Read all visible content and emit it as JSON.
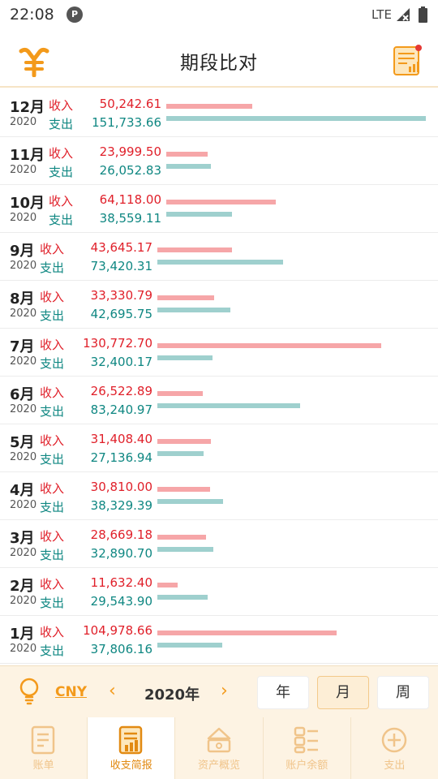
{
  "status_bar": {
    "time": "22:08",
    "app_badge": "P",
    "network": "LTE"
  },
  "header": {
    "title": "期段比对"
  },
  "labels": {
    "income": "收入",
    "expense": "支出"
  },
  "max_value": 151733.66,
  "rows": [
    {
      "month": "12月",
      "year": "2020",
      "income": "50,242.61",
      "expense": "151,733.66",
      "income_value": 50242.61,
      "expense_value": 151733.66
    },
    {
      "month": "11月",
      "year": "2020",
      "income": "23,999.50",
      "expense": "26,052.83",
      "income_value": 23999.5,
      "expense_value": 26052.83
    },
    {
      "month": "10月",
      "year": "2020",
      "income": "64,118.00",
      "expense": "38,559.11",
      "income_value": 64118.0,
      "expense_value": 38559.11
    },
    {
      "month": "9月",
      "year": "2020",
      "income": "43,645.17",
      "expense": "73,420.31",
      "income_value": 43645.17,
      "expense_value": 73420.31
    },
    {
      "month": "8月",
      "year": "2020",
      "income": "33,330.79",
      "expense": "42,695.75",
      "income_value": 33330.79,
      "expense_value": 42695.75
    },
    {
      "month": "7月",
      "year": "2020",
      "income": "130,772.70",
      "expense": "32,400.17",
      "income_value": 130772.7,
      "expense_value": 32400.17
    },
    {
      "month": "6月",
      "year": "2020",
      "income": "26,522.89",
      "expense": "83,240.97",
      "income_value": 26522.89,
      "expense_value": 83240.97
    },
    {
      "month": "5月",
      "year": "2020",
      "income": "31,408.40",
      "expense": "27,136.94",
      "income_value": 31408.4,
      "expense_value": 27136.94
    },
    {
      "month": "4月",
      "year": "2020",
      "income": "30,810.00",
      "expense": "38,329.39",
      "income_value": 30810.0,
      "expense_value": 38329.39
    },
    {
      "month": "3月",
      "year": "2020",
      "income": "28,669.18",
      "expense": "32,890.70",
      "income_value": 28669.18,
      "expense_value": 32890.7
    },
    {
      "month": "2月",
      "year": "2020",
      "income": "11,632.40",
      "expense": "29,543.90",
      "income_value": 11632.4,
      "expense_value": 29543.9
    },
    {
      "month": "1月",
      "year": "2020",
      "income": "104,978.66",
      "expense": "37,806.16",
      "income_value": 104978.66,
      "expense_value": 37806.16
    }
  ],
  "controls": {
    "currency": "CNY",
    "prev": "‹",
    "year": "2020年",
    "next": "›",
    "periods": [
      "年",
      "月",
      "周"
    ],
    "active_period": "月"
  },
  "nav": [
    {
      "label": "账单",
      "icon": "bill-icon"
    },
    {
      "label": "收支简报",
      "icon": "report-icon",
      "active": true
    },
    {
      "label": "资产概览",
      "icon": "assets-icon"
    },
    {
      "label": "账户余额",
      "icon": "balance-icon"
    },
    {
      "label": "支出",
      "icon": "add-icon"
    }
  ],
  "colors": {
    "income": "#e0202a",
    "expense": "#0f8782",
    "income_bar": "#f6a6a8",
    "expense_bar": "#9fd0ce",
    "accent": "#f39a1b"
  }
}
